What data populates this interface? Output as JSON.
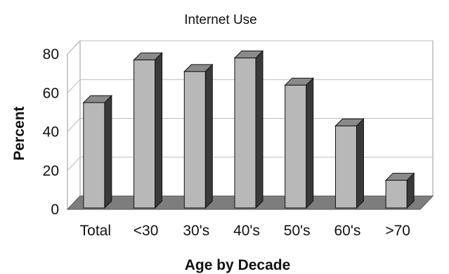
{
  "chart_data": {
    "type": "bar",
    "title": "Internet Use",
    "xlabel": "Age by Decade",
    "ylabel": "Percent",
    "categories": [
      "Total",
      "<30",
      "30's",
      "40's",
      "50's",
      "60's",
      ">70"
    ],
    "values": [
      55,
      77,
      71,
      78,
      64,
      43,
      15
    ],
    "ylim": [
      0,
      80
    ],
    "yticks": [
      "0",
      "20",
      "40",
      "60",
      "80"
    ],
    "grid": true,
    "legend": "none",
    "colors": {
      "bar_front": "#b8b8b8",
      "bar_top": "#8a8a8a",
      "bar_side": "#3a3a3a",
      "floor": "#7d7d7d",
      "grid": "#bdbdbd"
    }
  }
}
